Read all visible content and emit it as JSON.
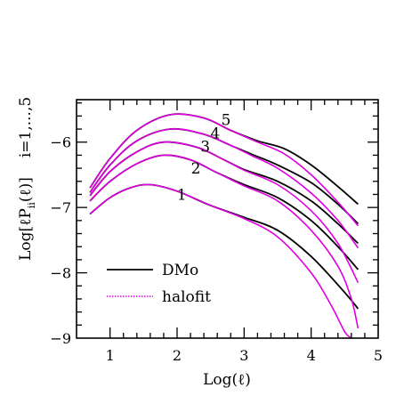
{
  "chart_data": {
    "type": "line",
    "xlabel": "Log(ℓ)",
    "ylabel": "Log[ℓP",
    "ylabel_sub": "ii",
    "ylabel_tail": "(ℓ)]",
    "ylabel_right": "i=1,...,5",
    "xlim": [
      0.5,
      5
    ],
    "ylim": [
      -9,
      -5.35
    ],
    "xticks": [
      1,
      2,
      3,
      4,
      5
    ],
    "yticks": [
      -9,
      -8,
      -7,
      -6
    ],
    "xtick_labels": [
      "1",
      "2",
      "3",
      "4",
      "5"
    ],
    "ytick_labels": [
      "−9",
      "−8",
      "−7",
      "−6"
    ],
    "legend": {
      "placement": "bottom-left",
      "entries": [
        "DMo",
        "halofit"
      ]
    },
    "colors": {
      "DMo": "#000000",
      "halofit": "#e000e0"
    },
    "curve_labels": [
      "1",
      "2",
      "3",
      "4",
      "5"
    ],
    "series": [
      {
        "name": "DMo",
        "bin": "1",
        "x": [
          0.7,
          1.0,
          1.3,
          1.6,
          2.0,
          2.5,
          3.0,
          3.5,
          4.0,
          4.5,
          4.7
        ],
        "y": [
          -7.1,
          -6.85,
          -6.7,
          -6.65,
          -6.75,
          -6.97,
          -7.15,
          -7.35,
          -7.75,
          -8.3,
          -8.55
        ]
      },
      {
        "name": "halofit",
        "bin": "1",
        "x": [
          0.7,
          1.0,
          1.3,
          1.6,
          2.0,
          2.5,
          3.0,
          3.5,
          4.0,
          4.3,
          4.5,
          4.6
        ],
        "y": [
          -7.1,
          -6.85,
          -6.7,
          -6.65,
          -6.75,
          -6.97,
          -7.17,
          -7.45,
          -8.0,
          -8.5,
          -8.9,
          -9.0
        ]
      },
      {
        "name": "DMo",
        "bin": "2",
        "x": [
          0.7,
          1.0,
          1.4,
          1.8,
          2.2,
          2.6,
          3.0,
          3.5,
          4.0,
          4.4,
          4.7
        ],
        "y": [
          -6.9,
          -6.6,
          -6.33,
          -6.2,
          -6.27,
          -6.47,
          -6.65,
          -6.85,
          -7.2,
          -7.6,
          -7.95
        ]
      },
      {
        "name": "halofit",
        "bin": "2",
        "x": [
          0.7,
          1.0,
          1.4,
          1.8,
          2.2,
          2.6,
          3.0,
          3.5,
          4.0,
          4.4,
          4.6,
          4.7
        ],
        "y": [
          -6.9,
          -6.6,
          -6.33,
          -6.2,
          -6.27,
          -6.47,
          -6.67,
          -6.9,
          -7.35,
          -7.9,
          -8.4,
          -8.85
        ]
      },
      {
        "name": "DMo",
        "bin": "3",
        "x": [
          0.7,
          1.0,
          1.4,
          1.8,
          2.3,
          2.7,
          3.0,
          3.5,
          4.0,
          4.4,
          4.7
        ],
        "y": [
          -6.82,
          -6.45,
          -6.15,
          -6.0,
          -6.08,
          -6.27,
          -6.42,
          -6.6,
          -6.9,
          -7.25,
          -7.55
        ]
      },
      {
        "name": "halofit",
        "bin": "3",
        "x": [
          0.7,
          1.0,
          1.4,
          1.8,
          2.3,
          2.7,
          3.0,
          3.5,
          4.0,
          4.4,
          4.7
        ],
        "y": [
          -6.82,
          -6.45,
          -6.15,
          -6.0,
          -6.08,
          -6.27,
          -6.43,
          -6.65,
          -7.05,
          -7.55,
          -8.15
        ]
      },
      {
        "name": "DMo",
        "bin": "4",
        "x": [
          0.7,
          1.0,
          1.4,
          1.9,
          2.4,
          2.8,
          3.1,
          3.5,
          4.0,
          4.4,
          4.7
        ],
        "y": [
          -6.77,
          -6.35,
          -5.98,
          -5.8,
          -5.88,
          -6.05,
          -6.18,
          -6.35,
          -6.62,
          -6.95,
          -7.25
        ]
      },
      {
        "name": "halofit",
        "bin": "4",
        "x": [
          0.7,
          1.0,
          1.4,
          1.9,
          2.4,
          2.8,
          3.1,
          3.5,
          4.0,
          4.4,
          4.7
        ],
        "y": [
          -6.77,
          -6.35,
          -5.98,
          -5.8,
          -5.88,
          -6.05,
          -6.2,
          -6.4,
          -6.78,
          -7.2,
          -7.62
        ]
      },
      {
        "name": "DMo",
        "bin": "5",
        "x": [
          0.7,
          1.0,
          1.4,
          1.9,
          2.4,
          2.8,
          3.2,
          3.6,
          4.0,
          4.4,
          4.7
        ],
        "y": [
          -6.7,
          -6.25,
          -5.82,
          -5.58,
          -5.63,
          -5.82,
          -5.98,
          -6.1,
          -6.35,
          -6.68,
          -6.95
        ]
      },
      {
        "name": "halofit",
        "bin": "5",
        "x": [
          0.7,
          1.0,
          1.4,
          1.9,
          2.4,
          2.8,
          3.2,
          3.6,
          4.0,
          4.4,
          4.7
        ],
        "y": [
          -6.7,
          -6.25,
          -5.82,
          -5.58,
          -5.63,
          -5.82,
          -6.0,
          -6.18,
          -6.5,
          -6.92,
          -7.28
        ]
      }
    ]
  }
}
